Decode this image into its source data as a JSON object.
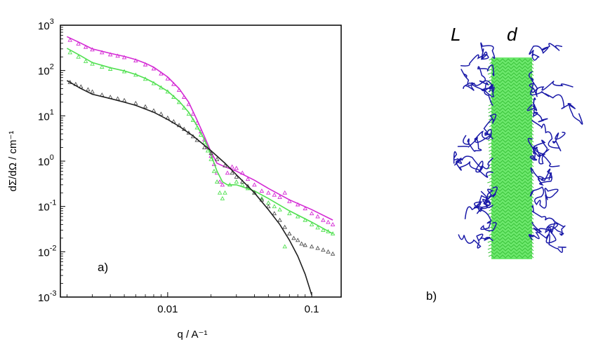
{
  "chart_data": [
    {
      "type": "scatter",
      "panel_label": "a)",
      "xlabel": "q / A⁻¹",
      "ylabel": "dΣ/dΩ / cm⁻¹",
      "x_scale": "log",
      "y_scale": "log",
      "xlim": [
        0.0018,
        0.16
      ],
      "ylim": [
        0.001,
        1000
      ],
      "x_ticks": [
        {
          "value": 0.01,
          "label": "0.01"
        },
        {
          "value": 0.1,
          "label": "0.1"
        }
      ],
      "y_ticks": [
        {
          "value": 0.001,
          "base": "10",
          "exp": "-3"
        },
        {
          "value": 0.01,
          "base": "10",
          "exp": "-2"
        },
        {
          "value": 0.1,
          "base": "10",
          "exp": "-1"
        },
        {
          "value": 1,
          "base": "10",
          "exp": "0"
        },
        {
          "value": 10,
          "base": "10",
          "exp": "1"
        },
        {
          "value": 100,
          "base": "10",
          "exp": "2"
        },
        {
          "value": 1000,
          "base": "10",
          "exp": "3"
        }
      ],
      "series": [
        {
          "color": "#d42ad4",
          "kind": "points",
          "points": [
            [
              0.0021,
              470
            ],
            [
              0.0024,
              390
            ],
            [
              0.0027,
              330
            ],
            [
              0.003,
              290
            ],
            [
              0.0035,
              250
            ],
            [
              0.004,
              225
            ],
            [
              0.0045,
              210
            ],
            [
              0.005,
              195
            ],
            [
              0.006,
              165
            ],
            [
              0.007,
              135
            ],
            [
              0.008,
              110
            ],
            [
              0.009,
              85
            ],
            [
              0.01,
              66
            ],
            [
              0.011,
              50
            ],
            [
              0.012,
              37
            ],
            [
              0.013,
              26
            ],
            [
              0.014,
              18
            ],
            [
              0.015,
              11
            ],
            [
              0.016,
              7
            ],
            [
              0.017,
              4.5
            ],
            [
              0.018,
              3
            ],
            [
              0.019,
              2
            ],
            [
              0.02,
              1.3
            ],
            [
              0.021,
              0.85
            ],
            [
              0.022,
              0.55
            ],
            [
              0.023,
              0.35
            ],
            [
              0.024,
              0.3
            ],
            [
              0.026,
              0.55
            ],
            [
              0.028,
              0.75
            ],
            [
              0.03,
              0.7
            ],
            [
              0.033,
              0.55
            ],
            [
              0.036,
              0.4
            ],
            [
              0.04,
              0.3
            ],
            [
              0.045,
              0.22
            ],
            [
              0.05,
              0.2
            ],
            [
              0.055,
              0.18
            ],
            [
              0.06,
              0.16
            ],
            [
              0.065,
              0.2
            ],
            [
              0.07,
              0.13
            ],
            [
              0.08,
              0.11
            ],
            [
              0.09,
              0.09
            ],
            [
              0.1,
              0.07
            ],
            [
              0.11,
              0.06
            ],
            [
              0.12,
              0.05
            ],
            [
              0.13,
              0.045
            ],
            [
              0.14,
              0.04
            ]
          ]
        },
        {
          "color": "#d42ad4",
          "kind": "line",
          "points": [
            [
              0.002,
              560
            ],
            [
              0.0025,
              400
            ],
            [
              0.003,
              300
            ],
            [
              0.004,
              240
            ],
            [
              0.005,
              205
            ],
            [
              0.006,
              175
            ],
            [
              0.007,
              145
            ],
            [
              0.008,
              118
            ],
            [
              0.01,
              72
            ],
            [
              0.012,
              40
            ],
            [
              0.014,
              20
            ],
            [
              0.016,
              8
            ],
            [
              0.018,
              3.5
            ],
            [
              0.02,
              1.6
            ],
            [
              0.022,
              0.9
            ],
            [
              0.025,
              0.75
            ],
            [
              0.03,
              0.6
            ],
            [
              0.04,
              0.38
            ],
            [
              0.05,
              0.25
            ],
            [
              0.07,
              0.14
            ],
            [
              0.1,
              0.085
            ],
            [
              0.14,
              0.05
            ]
          ]
        },
        {
          "color": "#50e050",
          "kind": "points",
          "points": [
            [
              0.0021,
              250
            ],
            [
              0.0024,
              200
            ],
            [
              0.0027,
              160
            ],
            [
              0.003,
              140
            ],
            [
              0.0035,
              120
            ],
            [
              0.004,
              108
            ],
            [
              0.005,
              95
            ],
            [
              0.006,
              80
            ],
            [
              0.007,
              65
            ],
            [
              0.008,
              52
            ],
            [
              0.009,
              42
            ],
            [
              0.01,
              34
            ],
            [
              0.011,
              26
            ],
            [
              0.012,
              20
            ],
            [
              0.013,
              15
            ],
            [
              0.014,
              11
            ],
            [
              0.015,
              8
            ],
            [
              0.016,
              5.5
            ],
            [
              0.017,
              3.8
            ],
            [
              0.018,
              2.6
            ],
            [
              0.019,
              1.7
            ],
            [
              0.02,
              1.1
            ],
            [
              0.021,
              0.6
            ],
            [
              0.022,
              0.35
            ],
            [
              0.023,
              0.2
            ],
            [
              0.024,
              0.15
            ],
            [
              0.025,
              0.2
            ],
            [
              0.027,
              0.3
            ],
            [
              0.03,
              0.35
            ],
            [
              0.033,
              0.3
            ],
            [
              0.036,
              0.25
            ],
            [
              0.04,
              0.2
            ],
            [
              0.045,
              0.15
            ],
            [
              0.05,
              0.12
            ],
            [
              0.055,
              0.1
            ],
            [
              0.06,
              0.085
            ],
            [
              0.065,
              0.013
            ],
            [
              0.07,
              0.07
            ],
            [
              0.08,
              0.06
            ],
            [
              0.09,
              0.05
            ],
            [
              0.1,
              0.04
            ],
            [
              0.11,
              0.034
            ],
            [
              0.12,
              0.03
            ],
            [
              0.13,
              0.028
            ],
            [
              0.14,
              0.025
            ]
          ]
        },
        {
          "color": "#50e050",
          "kind": "line",
          "points": [
            [
              0.002,
              310
            ],
            [
              0.0025,
              210
            ],
            [
              0.003,
              150
            ],
            [
              0.004,
              115
            ],
            [
              0.005,
              98
            ],
            [
              0.006,
              82
            ],
            [
              0.007,
              67
            ],
            [
              0.008,
              54
            ],
            [
              0.01,
              35
            ],
            [
              0.012,
              21
            ],
            [
              0.014,
              12
            ],
            [
              0.016,
              6
            ],
            [
              0.018,
              3
            ],
            [
              0.02,
              1.4
            ],
            [
              0.022,
              0.6
            ],
            [
              0.024,
              0.35
            ],
            [
              0.026,
              0.3
            ],
            [
              0.03,
              0.3
            ],
            [
              0.04,
              0.22
            ],
            [
              0.05,
              0.15
            ],
            [
              0.07,
              0.08
            ],
            [
              0.1,
              0.045
            ],
            [
              0.14,
              0.025
            ]
          ]
        },
        {
          "color": "#505050",
          "kind": "points",
          "points": [
            [
              0.0021,
              55
            ],
            [
              0.0023,
              50
            ],
            [
              0.0025,
              44
            ],
            [
              0.0028,
              38
            ],
            [
              0.003,
              34
            ],
            [
              0.0035,
              29
            ],
            [
              0.004,
              26
            ],
            [
              0.0045,
              24
            ],
            [
              0.005,
              22
            ],
            [
              0.006,
              19
            ],
            [
              0.007,
              16
            ],
            [
              0.008,
              13
            ],
            [
              0.009,
              11
            ],
            [
              0.01,
              9
            ],
            [
              0.011,
              7.5
            ],
            [
              0.012,
              6.2
            ],
            [
              0.013,
              5.1
            ],
            [
              0.014,
              4.2
            ],
            [
              0.015,
              3.5
            ],
            [
              0.016,
              2.9
            ],
            [
              0.018,
              2
            ],
            [
              0.02,
              1.5
            ],
            [
              0.022,
              1.1
            ],
            [
              0.025,
              0.8
            ],
            [
              0.028,
              0.55
            ],
            [
              0.03,
              0.45
            ],
            [
              0.033,
              0.35
            ],
            [
              0.036,
              0.28
            ],
            [
              0.04,
              0.2
            ],
            [
              0.045,
              0.14
            ],
            [
              0.05,
              0.1
            ],
            [
              0.055,
              0.07
            ],
            [
              0.06,
              0.05
            ],
            [
              0.065,
              0.035
            ],
            [
              0.07,
              0.025
            ],
            [
              0.075,
              0.02
            ],
            [
              0.08,
              0.018
            ],
            [
              0.085,
              0.015
            ],
            [
              0.09,
              0.014
            ],
            [
              0.1,
              0.013
            ],
            [
              0.11,
              0.012
            ],
            [
              0.12,
              0.011
            ],
            [
              0.13,
              0.01
            ],
            [
              0.14,
              0.009
            ]
          ]
        },
        {
          "color": "#202020",
          "kind": "line",
          "points": [
            [
              0.002,
              60
            ],
            [
              0.0025,
              40
            ],
            [
              0.003,
              30
            ],
            [
              0.004,
              24
            ],
            [
              0.005,
              20
            ],
            [
              0.006,
              17
            ],
            [
              0.008,
              12
            ],
            [
              0.01,
              8.3
            ],
            [
              0.012,
              5.9
            ],
            [
              0.015,
              3.6
            ],
            [
              0.02,
              1.7
            ],
            [
              0.025,
              0.9
            ],
            [
              0.03,
              0.5
            ],
            [
              0.04,
              0.2
            ],
            [
              0.05,
              0.085
            ],
            [
              0.06,
              0.04
            ],
            [
              0.07,
              0.018
            ],
            [
              0.08,
              0.008
            ],
            [
              0.09,
              0.0032
            ],
            [
              0.1,
              0.0011
            ]
          ]
        }
      ]
    },
    {
      "type": "diagram",
      "panel_label": "b)",
      "labels": [
        "L",
        "d"
      ],
      "colors": {
        "chains": "#1a1aa8",
        "core": "#6de86d"
      }
    }
  ]
}
